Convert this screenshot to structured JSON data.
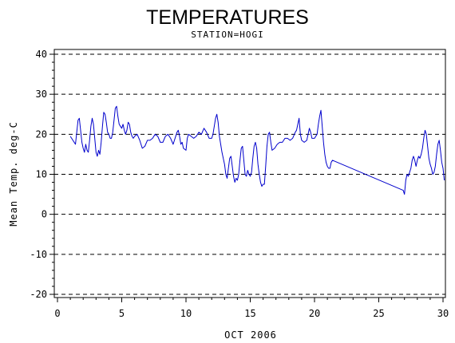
{
  "chart_data": {
    "type": "line",
    "title": "TEMPERATURES",
    "subtitle": "STATION=HOGI",
    "xlabel": "OCT 2006",
    "ylabel": "Mean Temp. deg-C",
    "xlim": [
      0,
      30
    ],
    "ylim": [
      -20,
      40
    ],
    "x_ticks": [
      0,
      5,
      10,
      15,
      20,
      25,
      30
    ],
    "y_ticks": [
      -20,
      -10,
      0,
      10,
      20,
      30,
      40
    ],
    "grid": "horizontal dashed at y ticks",
    "series_color": "#0000cc",
    "series": [
      {
        "points": [
          [
            1.0,
            19.5
          ],
          [
            1.2,
            18.5
          ],
          [
            1.4,
            17.5
          ],
          [
            1.5,
            20.5
          ],
          [
            1.6,
            23.5
          ],
          [
            1.7,
            24.0
          ],
          [
            1.8,
            21.0
          ],
          [
            1.9,
            18.0
          ],
          [
            2.0,
            16.5
          ],
          [
            2.1,
            15.5
          ],
          [
            2.2,
            17.5
          ],
          [
            2.3,
            16.0
          ],
          [
            2.4,
            15.5
          ],
          [
            2.5,
            18.5
          ],
          [
            2.6,
            22.0
          ],
          [
            2.7,
            24.0
          ],
          [
            2.8,
            22.5
          ],
          [
            2.9,
            19.0
          ],
          [
            3.0,
            15.5
          ],
          [
            3.1,
            14.5
          ],
          [
            3.2,
            16.0
          ],
          [
            3.3,
            15.0
          ],
          [
            3.4,
            18.0
          ],
          [
            3.5,
            22.0
          ],
          [
            3.6,
            25.5
          ],
          [
            3.7,
            25.0
          ],
          [
            3.8,
            23.0
          ],
          [
            3.9,
            20.5
          ],
          [
            4.0,
            20.0
          ],
          [
            4.1,
            19.0
          ],
          [
            4.2,
            19.0
          ],
          [
            4.3,
            20.5
          ],
          [
            4.4,
            23.5
          ],
          [
            4.5,
            26.5
          ],
          [
            4.6,
            27.0
          ],
          [
            4.7,
            24.5
          ],
          [
            4.8,
            22.5
          ],
          [
            4.9,
            22.0
          ],
          [
            5.0,
            21.5
          ],
          [
            5.1,
            22.5
          ],
          [
            5.2,
            21.0
          ],
          [
            5.3,
            20.0
          ],
          [
            5.4,
            21.0
          ],
          [
            5.5,
            23.0
          ],
          [
            5.6,
            22.5
          ],
          [
            5.7,
            20.5
          ],
          [
            5.8,
            19.5
          ],
          [
            5.9,
            19.0
          ],
          [
            6.0,
            19.5
          ],
          [
            6.2,
            20.0
          ],
          [
            6.4,
            18.5
          ],
          [
            6.6,
            16.5
          ],
          [
            6.8,
            17.0
          ],
          [
            7.0,
            18.5
          ],
          [
            7.2,
            18.5
          ],
          [
            7.4,
            19.0
          ],
          [
            7.6,
            20.0
          ],
          [
            7.8,
            19.5
          ],
          [
            8.0,
            18.0
          ],
          [
            8.2,
            18.0
          ],
          [
            8.4,
            19.5
          ],
          [
            8.6,
            20.0
          ],
          [
            8.8,
            19.0
          ],
          [
            9.0,
            17.5
          ],
          [
            9.2,
            19.5
          ],
          [
            9.3,
            20.5
          ],
          [
            9.4,
            21.0
          ],
          [
            9.5,
            19.5
          ],
          [
            9.6,
            17.5
          ],
          [
            9.7,
            18.0
          ],
          [
            9.8,
            16.5
          ],
          [
            10.0,
            16.0
          ],
          [
            10.1,
            19.0
          ],
          [
            10.2,
            20.0
          ],
          [
            10.4,
            19.5
          ],
          [
            10.6,
            19.0
          ],
          [
            10.8,
            19.5
          ],
          [
            11.0,
            20.5
          ],
          [
            11.2,
            20.0
          ],
          [
            11.4,
            21.5
          ],
          [
            11.6,
            20.5
          ],
          [
            11.8,
            19.0
          ],
          [
            12.0,
            19.0
          ],
          [
            12.1,
            20.0
          ],
          [
            12.2,
            22.0
          ],
          [
            12.3,
            24.0
          ],
          [
            12.4,
            25.0
          ],
          [
            12.5,
            23.0
          ],
          [
            12.6,
            19.5
          ],
          [
            12.7,
            17.5
          ],
          [
            12.8,
            15.5
          ],
          [
            12.9,
            14.0
          ],
          [
            13.0,
            12.5
          ],
          [
            13.1,
            10.0
          ],
          [
            13.2,
            9.0
          ],
          [
            13.3,
            11.5
          ],
          [
            13.4,
            14.0
          ],
          [
            13.5,
            14.5
          ],
          [
            13.6,
            12.0
          ],
          [
            13.7,
            9.5
          ],
          [
            13.8,
            8.0
          ],
          [
            13.9,
            9.0
          ],
          [
            14.0,
            8.5
          ],
          [
            14.1,
            10.0
          ],
          [
            14.2,
            13.5
          ],
          [
            14.3,
            16.5
          ],
          [
            14.4,
            17.0
          ],
          [
            14.5,
            13.5
          ],
          [
            14.6,
            10.0
          ],
          [
            14.7,
            9.5
          ],
          [
            14.8,
            11.0
          ],
          [
            14.9,
            10.0
          ],
          [
            15.0,
            9.5
          ],
          [
            15.1,
            10.5
          ],
          [
            15.2,
            14.0
          ],
          [
            15.3,
            17.0
          ],
          [
            15.4,
            18.0
          ],
          [
            15.5,
            16.5
          ],
          [
            15.6,
            12.5
          ],
          [
            15.7,
            10.0
          ],
          [
            15.8,
            8.0
          ],
          [
            15.9,
            7.0
          ],
          [
            16.0,
            7.5
          ],
          [
            16.1,
            7.5
          ],
          [
            16.2,
            12.0
          ],
          [
            16.3,
            17.0
          ],
          [
            16.4,
            20.0
          ],
          [
            16.5,
            20.5
          ],
          [
            16.6,
            18.0
          ],
          [
            16.7,
            16.0
          ],
          [
            16.9,
            16.5
          ],
          [
            17.1,
            17.5
          ],
          [
            17.3,
            18.0
          ],
          [
            17.5,
            18.0
          ],
          [
            17.7,
            19.0
          ],
          [
            17.9,
            19.0
          ],
          [
            18.1,
            18.5
          ],
          [
            18.3,
            19.0
          ],
          [
            18.5,
            20.5
          ],
          [
            18.6,
            21.0
          ],
          [
            18.7,
            22.5
          ],
          [
            18.8,
            24.0
          ],
          [
            18.9,
            20.0
          ],
          [
            19.0,
            18.5
          ],
          [
            19.2,
            18.0
          ],
          [
            19.4,
            18.5
          ],
          [
            19.5,
            20.0
          ],
          [
            19.6,
            21.5
          ],
          [
            19.7,
            20.5
          ],
          [
            19.8,
            19.0
          ],
          [
            20.0,
            19.0
          ],
          [
            20.2,
            20.0
          ],
          [
            20.3,
            22.5
          ],
          [
            20.4,
            24.5
          ],
          [
            20.5,
            26.0
          ],
          [
            20.6,
            22.0
          ],
          [
            20.7,
            18.0
          ],
          [
            20.8,
            15.0
          ],
          [
            20.9,
            13.0
          ],
          [
            21.0,
            12.0
          ],
          [
            21.1,
            11.5
          ],
          [
            21.2,
            11.5
          ],
          [
            21.3,
            13.0
          ],
          [
            21.4,
            13.5
          ],
          [
            26.9,
            6.0
          ],
          [
            27.0,
            5.0
          ],
          [
            27.1,
            8.5
          ],
          [
            27.2,
            10.0
          ],
          [
            27.3,
            9.5
          ],
          [
            27.4,
            10.5
          ],
          [
            27.5,
            11.5
          ],
          [
            27.6,
            13.5
          ],
          [
            27.7,
            14.5
          ],
          [
            27.8,
            13.5
          ],
          [
            27.9,
            12.0
          ],
          [
            28.0,
            13.5
          ],
          [
            28.1,
            14.5
          ],
          [
            28.2,
            14.0
          ],
          [
            28.3,
            15.0
          ],
          [
            28.4,
            16.5
          ],
          [
            28.5,
            19.0
          ],
          [
            28.6,
            21.0
          ],
          [
            28.7,
            20.0
          ],
          [
            28.8,
            17.0
          ],
          [
            28.9,
            14.0
          ],
          [
            29.0,
            12.5
          ],
          [
            29.1,
            11.5
          ],
          [
            29.2,
            10.0
          ],
          [
            29.3,
            10.5
          ],
          [
            29.4,
            12.0
          ],
          [
            29.5,
            15.0
          ],
          [
            29.6,
            17.5
          ],
          [
            29.7,
            18.5
          ],
          [
            29.8,
            16.0
          ],
          [
            29.9,
            13.0
          ],
          [
            30.0,
            11.5
          ],
          [
            30.1,
            8.5
          ]
        ]
      }
    ]
  }
}
